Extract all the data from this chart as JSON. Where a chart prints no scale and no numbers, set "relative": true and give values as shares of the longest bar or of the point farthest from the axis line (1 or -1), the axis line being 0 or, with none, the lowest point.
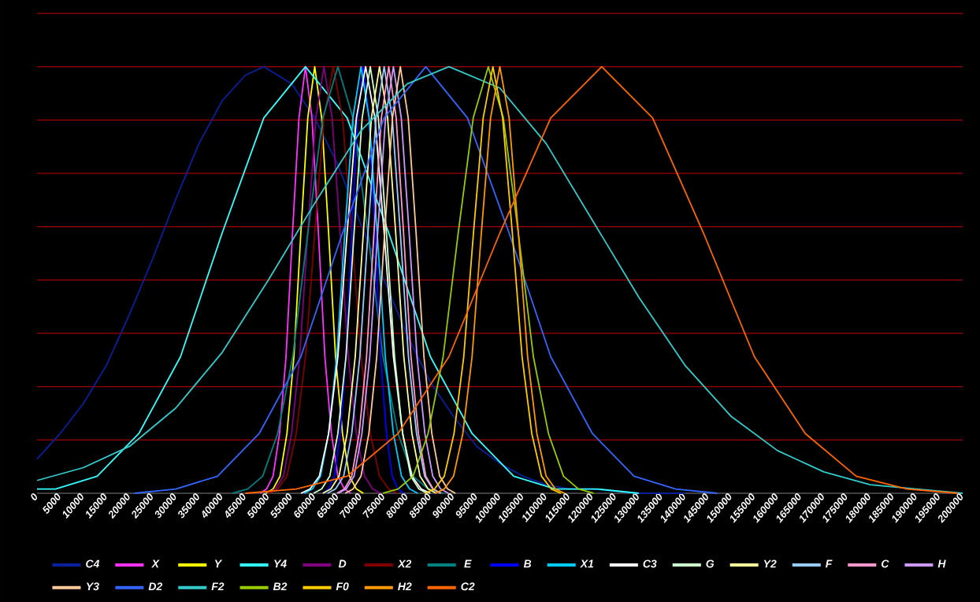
{
  "chart_data": {
    "type": "line",
    "relative": true,
    "legend": "bottom",
    "tick_labels": "x",
    "marker": "none",
    "line_style": "solid",
    "xlim": [
      0,
      200000
    ],
    "ref_lines": [
      {
        "axis": "y",
        "value": 0.125,
        "color": "#cc0000"
      },
      {
        "axis": "y",
        "value": 0.25,
        "color": "#cc0000"
      },
      {
        "axis": "y",
        "value": 0.375,
        "color": "#cc0000"
      },
      {
        "axis": "y",
        "value": 0.5,
        "color": "#cc0000"
      },
      {
        "axis": "y",
        "value": 0.625,
        "color": "#cc0000"
      },
      {
        "axis": "y",
        "value": 0.75,
        "color": "#cc0000"
      },
      {
        "axis": "y",
        "value": 0.875,
        "color": "#cc0000"
      },
      {
        "axis": "y",
        "value": 1,
        "color": "#cc0000"
      },
      {
        "axis": "y",
        "value": 1.125,
        "color": "#cc0000"
      }
    ],
    "xticks": [
      0,
      5000,
      10000,
      15000,
      20000,
      25000,
      30000,
      35000,
      40000,
      45000,
      50000,
      55000,
      60000,
      65000,
      70000,
      75000,
      80000,
      85000,
      90000,
      95000,
      100000,
      105000,
      110000,
      115000,
      120000,
      125000,
      130000,
      135000,
      140000,
      145000,
      150000,
      155000,
      160000,
      165000,
      170000,
      175000,
      180000,
      185000,
      190000,
      195000,
      200000
    ],
    "series": [
      {
        "name": "C4",
        "color": "#0a1f9c",
        "x": [
          0,
          5000,
          10000,
          15000,
          20000,
          25000,
          30000,
          35000,
          40000,
          45000,
          49000,
          55000,
          60000,
          65000,
          70000,
          75000,
          80000,
          85000,
          90000,
          95000,
          100000,
          105000,
          110000,
          115000,
          120000,
          130000,
          140000
        ],
        "values": [
          0.08,
          0.14,
          0.21,
          0.3,
          0.42,
          0.55,
          0.69,
          0.82,
          0.92,
          0.98,
          1,
          0.96,
          0.88,
          0.77,
          0.63,
          0.5,
          0.37,
          0.26,
          0.18,
          0.11,
          0.07,
          0.04,
          0.02,
          0.01,
          0.01,
          0,
          0
        ]
      },
      {
        "name": "X",
        "color": "#ff33ff",
        "x": [
          48200,
          49600,
          51000,
          52400,
          53800,
          55200,
          56600,
          58000,
          59400,
          60800,
          62200,
          63600,
          65000,
          66400,
          67800
        ],
        "values": [
          0,
          0.01,
          0.04,
          0.14,
          0.32,
          0.61,
          0.88,
          1,
          0.88,
          0.61,
          0.32,
          0.14,
          0.04,
          0.01,
          0
        ]
      },
      {
        "name": "Y",
        "color": "#ffff00",
        "x": [
          49500,
          51000,
          52500,
          54000,
          55500,
          57000,
          58500,
          60000,
          61500,
          63000,
          64500,
          66000,
          67500,
          69000,
          70500
        ],
        "values": [
          0,
          0.01,
          0.04,
          0.14,
          0.32,
          0.61,
          0.88,
          1,
          0.88,
          0.61,
          0.32,
          0.14,
          0.04,
          0.01,
          0
        ]
      },
      {
        "name": "Y4",
        "color": "#33ffff",
        "x": [
          0,
          4000,
          13000,
          22000,
          31000,
          40000,
          49000,
          58000,
          67000,
          76000,
          85000,
          94000,
          103000,
          112000,
          121000,
          130000
        ],
        "values": [
          0.01,
          0.01,
          0.04,
          0.14,
          0.32,
          0.61,
          0.88,
          1,
          0.88,
          0.61,
          0.32,
          0.14,
          0.04,
          0.01,
          0.01,
          0
        ]
      },
      {
        "name": "D",
        "color": "#800080",
        "x": [
          49750,
          51500,
          53250,
          55000,
          56750,
          58500,
          60250,
          62000,
          63750,
          65500,
          67250,
          69000,
          70750,
          72500,
          74250
        ],
        "values": [
          0,
          0.01,
          0.04,
          0.14,
          0.32,
          0.61,
          0.88,
          1,
          0.88,
          0.61,
          0.32,
          0.14,
          0.04,
          0.01,
          0
        ]
      },
      {
        "name": "X2",
        "color": "#800000",
        "x": [
          50000,
          52000,
          54000,
          56000,
          58000,
          60000,
          62000,
          64000,
          66000,
          68000,
          70000,
          72000,
          74000,
          76000,
          78000
        ],
        "values": [
          0,
          0.01,
          0.04,
          0.14,
          0.32,
          0.61,
          0.88,
          1,
          0.88,
          0.61,
          0.32,
          0.14,
          0.04,
          0.01,
          0
        ]
      },
      {
        "name": "E",
        "color": "#008080",
        "x": [
          42250,
          45500,
          48750,
          52000,
          55250,
          58500,
          61750,
          65000,
          68250,
          71500,
          74750,
          78000,
          81250,
          84500,
          87750
        ],
        "values": [
          0,
          0.01,
          0.04,
          0.14,
          0.32,
          0.61,
          0.88,
          1,
          0.88,
          0.61,
          0.32,
          0.14,
          0.04,
          0.01,
          0
        ]
      },
      {
        "name": "B",
        "color": "#0000ff",
        "x": [
          61750,
          63000,
          64250,
          65500,
          66750,
          68000,
          69250,
          70500,
          71750,
          73000,
          74250,
          75500,
          76750,
          78000,
          79250
        ],
        "values": [
          0,
          0.01,
          0.04,
          0.14,
          0.32,
          0.61,
          0.88,
          1,
          0.88,
          0.61,
          0.32,
          0.14,
          0.04,
          0.01,
          0
        ]
      },
      {
        "name": "X1",
        "color": "#00ccff",
        "x": [
          57750,
          59500,
          61250,
          63000,
          64750,
          66500,
          68250,
          70000,
          71750,
          73500,
          75250,
          77000,
          78750,
          80500,
          82250
        ],
        "values": [
          0,
          0.01,
          0.04,
          0.14,
          0.32,
          0.61,
          0.88,
          1,
          0.88,
          0.61,
          0.32,
          0.14,
          0.04,
          0.01,
          0
        ]
      },
      {
        "name": "C3",
        "color": "#ffffff",
        "x": [
          57000,
          59000,
          61000,
          63000,
          65000,
          67000,
          69000,
          71000,
          73000,
          75000,
          77000,
          79000,
          81000,
          83000,
          85000
        ],
        "values": [
          0,
          0.01,
          0.04,
          0.14,
          0.32,
          0.61,
          0.88,
          1,
          0.88,
          0.61,
          0.32,
          0.14,
          0.04,
          0.01,
          0
        ]
      },
      {
        "name": "G",
        "color": "#ccffcc",
        "x": [
          59750,
          61500,
          63250,
          65000,
          66750,
          68500,
          70250,
          72000,
          73750,
          75500,
          77250,
          79000,
          80750,
          82500,
          84250
        ],
        "values": [
          0,
          0.01,
          0.04,
          0.14,
          0.32,
          0.61,
          0.88,
          1,
          0.88,
          0.61,
          0.32,
          0.14,
          0.04,
          0.01,
          0
        ]
      },
      {
        "name": "Y2",
        "color": "#ffff99",
        "x": [
          61750,
          63500,
          65250,
          67000,
          68750,
          70500,
          72250,
          74000,
          75750,
          77500,
          79250,
          81000,
          82750,
          84500,
          86250
        ],
        "values": [
          0,
          0.01,
          0.04,
          0.14,
          0.32,
          0.61,
          0.88,
          1,
          0.88,
          0.61,
          0.32,
          0.14,
          0.04,
          0.01,
          0
        ]
      },
      {
        "name": "F",
        "color": "#99ccff",
        "x": [
          62750,
          64500,
          66250,
          68000,
          69750,
          71500,
          73250,
          75000,
          76750,
          78500,
          80250,
          82000,
          83750,
          85500,
          87250
        ],
        "values": [
          0,
          0.01,
          0.04,
          0.14,
          0.32,
          0.61,
          0.88,
          1,
          0.88,
          0.61,
          0.32,
          0.14,
          0.04,
          0.01,
          0
        ]
      },
      {
        "name": "C",
        "color": "#ff99cc",
        "x": [
          64800,
          66400,
          68000,
          69600,
          71200,
          72800,
          74400,
          76000,
          77600,
          79200,
          80800,
          82400,
          84000,
          85600,
          87200
        ],
        "values": [
          0,
          0.01,
          0.04,
          0.14,
          0.32,
          0.61,
          0.88,
          1,
          0.88,
          0.61,
          0.32,
          0.14,
          0.04,
          0.01,
          0
        ]
      },
      {
        "name": "H",
        "color": "#cc99ff",
        "x": [
          65100,
          66800,
          68500,
          70200,
          71900,
          73600,
          75300,
          77000,
          78700,
          80400,
          82100,
          83800,
          85500,
          87200,
          88900
        ],
        "values": [
          0,
          0.01,
          0.04,
          0.14,
          0.32,
          0.61,
          0.88,
          1,
          0.88,
          0.61,
          0.32,
          0.14,
          0.04,
          0.01,
          0
        ]
      },
      {
        "name": "Y3",
        "color": "#ffcc99",
        "x": [
          66600,
          68300,
          70000,
          71700,
          73400,
          75100,
          76800,
          78500,
          80200,
          81900,
          83600,
          85300,
          87000,
          88700,
          90400
        ],
        "values": [
          0,
          0.01,
          0.04,
          0.14,
          0.32,
          0.61,
          0.88,
          1,
          0.88,
          0.61,
          0.32,
          0.14,
          0.04,
          0.01,
          0
        ]
      },
      {
        "name": "D2",
        "color": "#3366ff",
        "x": [
          21000,
          30000,
          39000,
          48000,
          57000,
          66000,
          75000,
          84000,
          93000,
          102000,
          111000,
          120000,
          129000,
          138000,
          147000
        ],
        "values": [
          0,
          0.01,
          0.04,
          0.14,
          0.32,
          0.61,
          0.88,
          1,
          0.88,
          0.61,
          0.32,
          0.14,
          0.04,
          0.01,
          0
        ]
      },
      {
        "name": "F2",
        "color": "#33cccc",
        "x": [
          0,
          10000,
          20000,
          30000,
          40000,
          50000,
          60000,
          70000,
          80000,
          89000,
          100000,
          110000,
          120000,
          130000,
          140000,
          150000,
          160000,
          170000,
          180000,
          190000,
          200000
        ],
        "values": [
          0.03,
          0.06,
          0.11,
          0.2,
          0.33,
          0.5,
          0.68,
          0.85,
          0.96,
          1,
          0.95,
          0.82,
          0.64,
          0.46,
          0.3,
          0.18,
          0.1,
          0.05,
          0.02,
          0.01,
          0
        ]
      },
      {
        "name": "B2",
        "color": "#99cc00",
        "x": [
          74750,
          78000,
          81250,
          84500,
          87750,
          91000,
          94250,
          97500,
          100750,
          104000,
          107250,
          110500,
          113750,
          117000,
          120250
        ],
        "values": [
          0,
          0.01,
          0.04,
          0.14,
          0.32,
          0.61,
          0.88,
          1,
          0.88,
          0.61,
          0.32,
          0.14,
          0.04,
          0.01,
          0
        ]
      },
      {
        "name": "F0",
        "color": "#ffcc00",
        "x": [
          83800,
          85900,
          88000,
          90100,
          92200,
          94300,
          96400,
          98500,
          100600,
          102700,
          104800,
          106900,
          109000,
          111100,
          113200
        ],
        "values": [
          0,
          0.01,
          0.04,
          0.14,
          0.32,
          0.61,
          0.88,
          1,
          0.88,
          0.61,
          0.32,
          0.14,
          0.04,
          0.01,
          0
        ]
      },
      {
        "name": "H2",
        "color": "#ff9900",
        "x": [
          86000,
          88000,
          90000,
          92000,
          94000,
          96000,
          98000,
          100000,
          102000,
          104000,
          106000,
          108000,
          110000,
          112000,
          114000
        ],
        "values": [
          0,
          0.01,
          0.04,
          0.14,
          0.32,
          0.61,
          0.88,
          1,
          0.88,
          0.61,
          0.32,
          0.14,
          0.04,
          0.01,
          0
        ]
      },
      {
        "name": "C2",
        "color": "#ff6600",
        "x": [
          45000,
          56000,
          67000,
          78000,
          89000,
          100000,
          111000,
          122000,
          133000,
          144000,
          155000,
          166000,
          177000,
          188000,
          199000
        ],
        "values": [
          0,
          0.01,
          0.04,
          0.14,
          0.32,
          0.61,
          0.88,
          1,
          0.88,
          0.61,
          0.32,
          0.14,
          0.04,
          0.01,
          0
        ]
      }
    ]
  }
}
